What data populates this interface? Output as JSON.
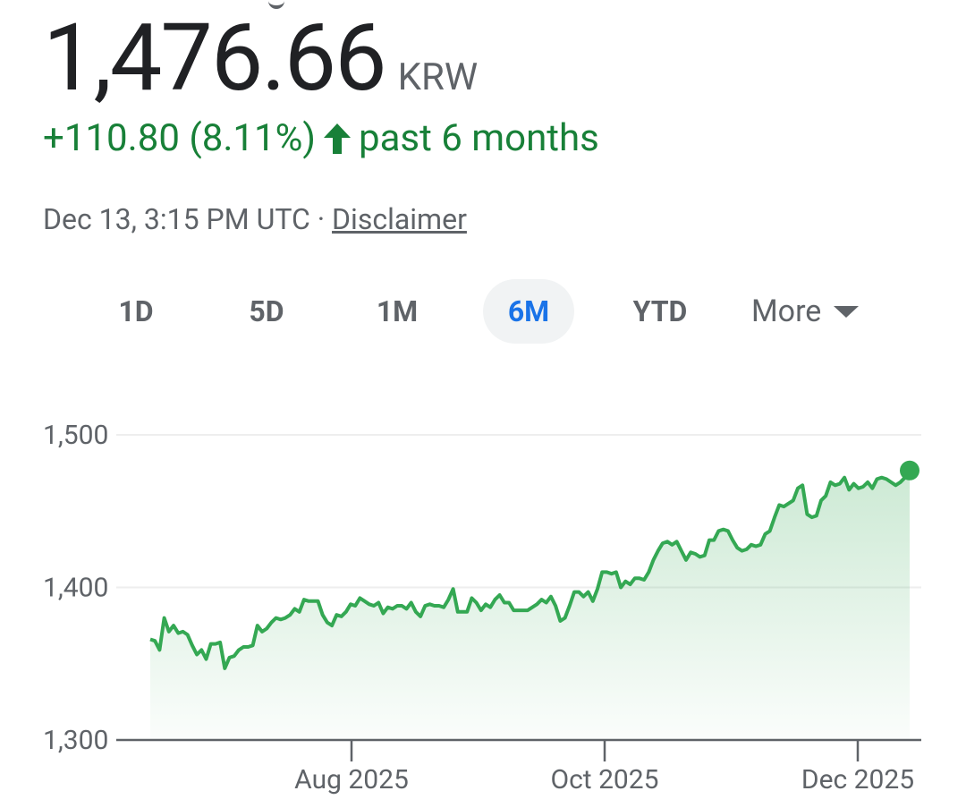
{
  "quote": {
    "price": "1,476.66",
    "currency": "KRW",
    "change": "+110.80 (8.11%)",
    "period": "past 6 months",
    "timestamp": "Dec 13, 3:15 PM UTC · ",
    "disclaimer": "Disclaimer"
  },
  "colors": {
    "positive": "#188038",
    "line": "#34a853",
    "active_tab": "#1a73e8"
  },
  "tabs": [
    {
      "label": "1D",
      "active": false
    },
    {
      "label": "5D",
      "active": false
    },
    {
      "label": "1M",
      "active": false
    },
    {
      "label": "6M",
      "active": true
    },
    {
      "label": "YTD",
      "active": false
    }
  ],
  "more_label": "More",
  "chart_data": {
    "type": "area",
    "y_ticks": [
      "1,500",
      "1,400",
      "1,300"
    ],
    "x_ticks": [
      "Aug 2025",
      "Oct 2025",
      "Dec 2025"
    ],
    "ylim": [
      1300,
      1500
    ],
    "grid": true,
    "series": [
      {
        "values": [
          1366,
          1365,
          1359,
          1380,
          1371,
          1375,
          1370,
          1371,
          1369,
          1362,
          1356,
          1359,
          1353,
          1363,
          1363,
          1364,
          1347,
          1354,
          1355,
          1359,
          1361,
          1361,
          1362,
          1375,
          1371,
          1373,
          1377,
          1380,
          1379,
          1380,
          1382,
          1386,
          1384,
          1392,
          1391,
          1391,
          1391,
          1382,
          1377,
          1375,
          1382,
          1381,
          1384,
          1389,
          1388,
          1393,
          1391,
          1389,
          1388,
          1390,
          1383,
          1387,
          1386,
          1388,
          1388,
          1386,
          1390,
          1384,
          1381,
          1388,
          1389,
          1388,
          1388,
          1387,
          1392,
          1399,
          1384,
          1384,
          1384,
          1393,
          1390,
          1385,
          1389,
          1387,
          1392,
          1395,
          1390,
          1390,
          1385,
          1385,
          1385,
          1385,
          1387,
          1389,
          1392,
          1390,
          1394,
          1388,
          1378,
          1380,
          1388,
          1397,
          1397,
          1394,
          1397,
          1391,
          1399,
          1410,
          1410,
          1409,
          1410,
          1400,
          1404,
          1402,
          1406,
          1406,
          1405,
          1410,
          1418,
          1424,
          1429,
          1430,
          1428,
          1430,
          1424,
          1418,
          1423,
          1422,
          1420,
          1421,
          1431,
          1431,
          1437,
          1438,
          1437,
          1431,
          1426,
          1424,
          1425,
          1428,
          1427,
          1428,
          1435,
          1437,
          1446,
          1454,
          1453,
          1455,
          1457,
          1465,
          1467,
          1448,
          1446,
          1447,
          1457,
          1460,
          1469,
          1467,
          1468,
          1472,
          1464,
          1468,
          1465,
          1466,
          1469,
          1465,
          1471,
          1472,
          1471,
          1469,
          1467,
          1469,
          1472,
          1476.66
        ]
      }
    ]
  }
}
